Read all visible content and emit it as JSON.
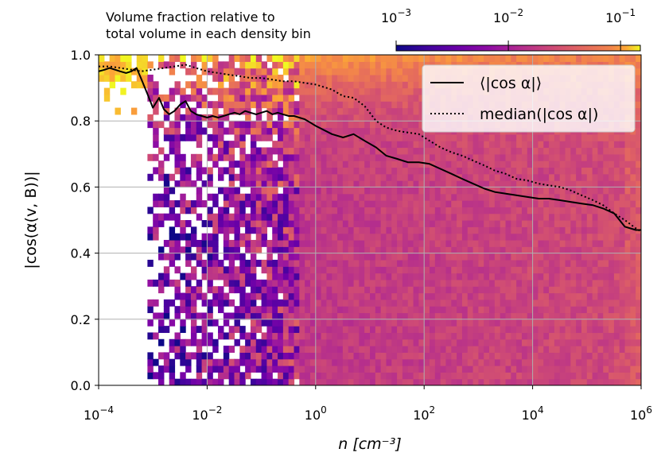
{
  "chart_data": {
    "type": "heatmap",
    "title": "",
    "xlabel": "n [cm⁻³]",
    "ylabel": "|cos(α(v, B))|",
    "x_scale": "log",
    "xlim": [
      0.0001,
      1000000
    ],
    "ylim": [
      0.0,
      1.0
    ],
    "grid": true,
    "x_ticks": [
      {
        "value": 0.0001,
        "base": "10",
        "exp": "−4"
      },
      {
        "value": 0.01,
        "base": "10",
        "exp": "−2"
      },
      {
        "value": 1,
        "base": "10",
        "exp": "0"
      },
      {
        "value": 100,
        "base": "10",
        "exp": "2"
      },
      {
        "value": 10000,
        "base": "10",
        "exp": "4"
      },
      {
        "value": 1000000,
        "base": "10",
        "exp": "6"
      }
    ],
    "y_ticks": [
      "0.0",
      "0.2",
      "0.4",
      "0.6",
      "0.8",
      "1.0"
    ],
    "colorbar": {
      "label_lines": [
        "Volume fraction relative to",
        "total volume in each density bin"
      ],
      "scale": "log",
      "range": [
        0.001,
        0.15
      ],
      "ticks": [
        {
          "value": 0.001,
          "base": "10",
          "exp": "−3"
        },
        {
          "value": 0.01,
          "base": "10",
          "exp": "−2"
        },
        {
          "value": 0.1,
          "base": "10",
          "exp": "−1"
        }
      ],
      "colormap": "plasma"
    },
    "legend": {
      "placement": "top-right",
      "entries": [
        {
          "label": "⟨|cos α|⟩",
          "style": "solid"
        },
        {
          "label": "median(|cos α|)",
          "style": "dotted"
        }
      ]
    },
    "series": [
      {
        "name": "⟨|cos α|⟩",
        "style": "solid",
        "color": "#000000",
        "x": [
          0.0001,
          0.00013,
          0.00016,
          0.0002,
          0.00025,
          0.00032,
          0.0004,
          0.0005,
          0.0006,
          0.0008,
          0.001,
          0.0013,
          0.0016,
          0.002,
          0.0025,
          0.0032,
          0.004,
          0.005,
          0.0063,
          0.008,
          0.01,
          0.0126,
          0.016,
          0.02,
          0.025,
          0.032,
          0.04,
          0.05,
          0.063,
          0.08,
          0.1,
          0.126,
          0.16,
          0.2,
          0.25,
          0.32,
          0.4,
          0.5,
          0.63,
          0.8,
          1,
          2,
          3.2,
          5,
          8,
          13,
          20,
          32,
          50,
          80,
          126,
          200,
          320,
          500,
          800,
          1300,
          2000,
          3200,
          5000,
          8000,
          13000,
          20000,
          32000,
          50000,
          80000,
          130000,
          200000,
          320000,
          500000,
          800000,
          1000000
        ],
        "y": [
          0.95,
          0.955,
          0.96,
          0.955,
          0.95,
          0.945,
          0.95,
          0.96,
          0.93,
          0.88,
          0.84,
          0.87,
          0.835,
          0.82,
          0.83,
          0.85,
          0.86,
          0.83,
          0.82,
          0.815,
          0.81,
          0.815,
          0.81,
          0.815,
          0.82,
          0.825,
          0.82,
          0.83,
          0.825,
          0.82,
          0.825,
          0.83,
          0.82,
          0.825,
          0.82,
          0.815,
          0.815,
          0.81,
          0.805,
          0.795,
          0.785,
          0.76,
          0.75,
          0.76,
          0.74,
          0.72,
          0.695,
          0.685,
          0.675,
          0.675,
          0.67,
          0.655,
          0.64,
          0.625,
          0.61,
          0.595,
          0.585,
          0.58,
          0.575,
          0.57,
          0.565,
          0.565,
          0.56,
          0.555,
          0.55,
          0.545,
          0.535,
          0.52,
          0.48,
          0.47,
          0.47
        ]
      },
      {
        "name": "median(|cos α|)",
        "style": "dotted",
        "color": "#000000",
        "x": [
          0.0001,
          0.00016,
          0.00025,
          0.0004,
          0.0006,
          0.001,
          0.0016,
          0.0025,
          0.004,
          0.0063,
          0.01,
          0.016,
          0.025,
          0.04,
          0.063,
          0.1,
          0.16,
          0.25,
          0.4,
          0.63,
          1,
          2,
          3.2,
          5,
          8,
          13,
          20,
          32,
          50,
          80,
          126,
          200,
          320,
          500,
          800,
          1300,
          2000,
          3200,
          5000,
          8000,
          13000,
          20000,
          32000,
          50000,
          80000,
          130000,
          200000,
          320000,
          500000,
          800000,
          1000000
        ],
        "y": [
          0.965,
          0.965,
          0.96,
          0.955,
          0.95,
          0.955,
          0.96,
          0.965,
          0.97,
          0.96,
          0.95,
          0.945,
          0.94,
          0.935,
          0.93,
          0.93,
          0.925,
          0.92,
          0.92,
          0.915,
          0.91,
          0.895,
          0.875,
          0.87,
          0.845,
          0.8,
          0.78,
          0.77,
          0.765,
          0.76,
          0.74,
          0.72,
          0.705,
          0.695,
          0.68,
          0.665,
          0.65,
          0.64,
          0.625,
          0.62,
          0.61,
          0.605,
          0.6,
          0.59,
          0.575,
          0.56,
          0.545,
          0.52,
          0.5,
          0.475,
          0.465
        ]
      }
    ]
  }
}
